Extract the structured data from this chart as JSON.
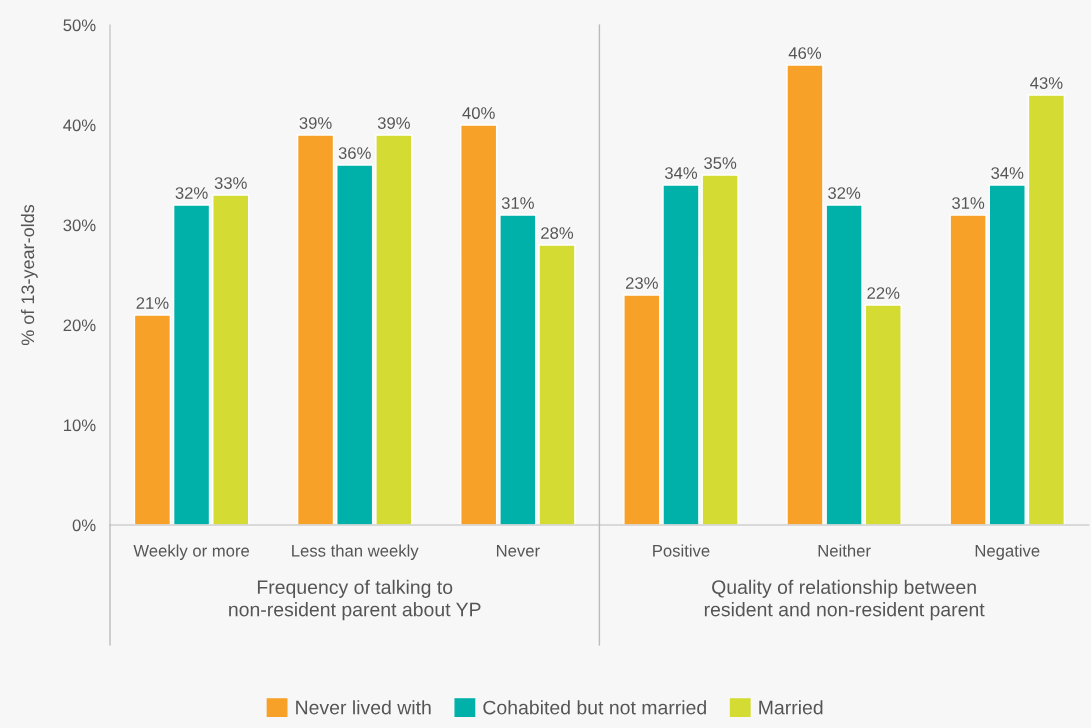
{
  "chart_data": {
    "type": "bar",
    "ylabel": "% of 13-year-olds",
    "categories": [
      "Weekly or more",
      "Less than weekly",
      "Never",
      "Positive",
      "Neither",
      "Negative"
    ],
    "series": [
      {
        "name": "Never lived with",
        "color": "#f7a128",
        "values": [
          21,
          39,
          40,
          23,
          46,
          31
        ],
        "value_labels": [
          "21%",
          "39%",
          "40%",
          "23%",
          "46%",
          "31%"
        ]
      },
      {
        "name": "Cohabited but not married",
        "color": "#00b1a9",
        "values": [
          32,
          36,
          31,
          34,
          32,
          34
        ],
        "value_labels": [
          "32%",
          "36%",
          "31%",
          "34%",
          "32%",
          "34%"
        ]
      },
      {
        "name": "Married",
        "color": "#d4dc33",
        "values": [
          33,
          39,
          28,
          35,
          22,
          43
        ],
        "value_labels": [
          "33%",
          "39%",
          "28%",
          "35%",
          "22%",
          "43%"
        ]
      }
    ],
    "ylim": [
      0,
      50
    ],
    "yticks": [
      {
        "value": 0,
        "label": "0%"
      },
      {
        "value": 10,
        "label": "10%"
      },
      {
        "value": 20,
        "label": "20%"
      },
      {
        "value": 30,
        "label": "30%"
      },
      {
        "value": 40,
        "label": "40%"
      },
      {
        "value": 50,
        "label": "50%"
      }
    ],
    "annotations": [
      "Frequency of talking to\nnon-resident parent about YP",
      "Quality of relationship between\nresident and non-resident parent"
    ],
    "grid": false,
    "legend": "bottom"
  }
}
